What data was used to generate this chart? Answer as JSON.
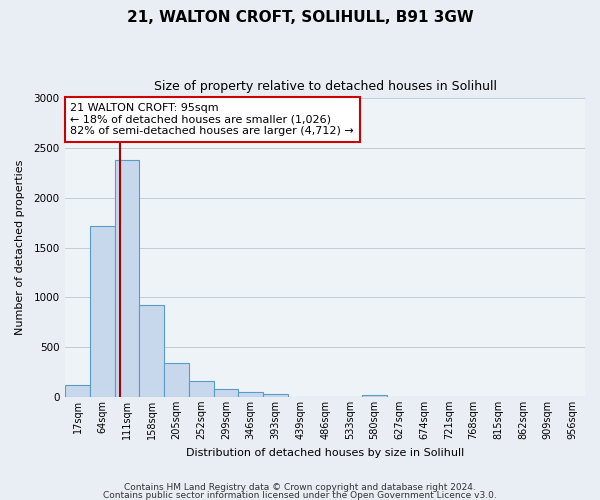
{
  "title": "21, WALTON CROFT, SOLIHULL, B91 3GW",
  "subtitle": "Size of property relative to detached houses in Solihull",
  "xlabel": "Distribution of detached houses by size in Solihull",
  "ylabel": "Number of detached properties",
  "bar_labels": [
    "17sqm",
    "64sqm",
    "111sqm",
    "158sqm",
    "205sqm",
    "252sqm",
    "299sqm",
    "346sqm",
    "393sqm",
    "439sqm",
    "486sqm",
    "533sqm",
    "580sqm",
    "627sqm",
    "674sqm",
    "721sqm",
    "768sqm",
    "815sqm",
    "862sqm",
    "909sqm",
    "956sqm"
  ],
  "bar_values": [
    120,
    1720,
    2380,
    920,
    340,
    155,
    80,
    45,
    30,
    0,
    0,
    0,
    20,
    0,
    0,
    0,
    0,
    0,
    0,
    0,
    0
  ],
  "bar_color": "#c8d8ec",
  "bar_edgecolor": "#5a9cc8",
  "vline_color": "#aa0000",
  "vline_x_idx": 1.72,
  "annotation_text": "21 WALTON CROFT: 95sqm\n← 18% of detached houses are smaller (1,026)\n82% of semi-detached houses are larger (4,712) →",
  "annotation_box_facecolor": "#ffffff",
  "annotation_box_edgecolor": "#cc0000",
  "ylim": [
    0,
    3000
  ],
  "yticks": [
    0,
    500,
    1000,
    1500,
    2000,
    2500,
    3000
  ],
  "footer_line1": "Contains HM Land Registry data © Crown copyright and database right 2024.",
  "footer_line2": "Contains public sector information licensed under the Open Government Licence v3.0.",
  "fig_background_color": "#e8eef4",
  "plot_background_color": "#eef3f8",
  "grid_color": "#c0ccd8",
  "title_fontsize": 11,
  "subtitle_fontsize": 9,
  "tick_fontsize": 7,
  "ylabel_fontsize": 8,
  "xlabel_fontsize": 8,
  "footer_fontsize": 6.5
}
